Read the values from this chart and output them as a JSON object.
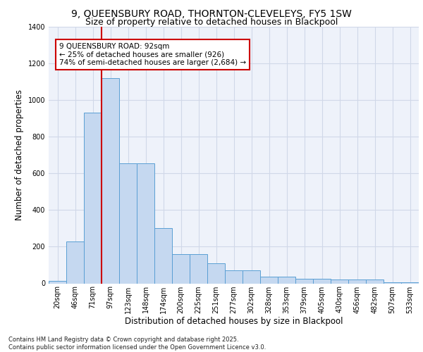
{
  "title_line1": "9, QUEENSBURY ROAD, THORNTON-CLEVELEYS, FY5 1SW",
  "title_line2": "Size of property relative to detached houses in Blackpool",
  "xlabel": "Distribution of detached houses by size in Blackpool",
  "ylabel": "Number of detached properties",
  "categories": [
    "20sqm",
    "46sqm",
    "71sqm",
    "97sqm",
    "123sqm",
    "148sqm",
    "174sqm",
    "200sqm",
    "225sqm",
    "251sqm",
    "277sqm",
    "302sqm",
    "328sqm",
    "353sqm",
    "379sqm",
    "405sqm",
    "430sqm",
    "456sqm",
    "482sqm",
    "507sqm",
    "533sqm"
  ],
  "values": [
    15,
    230,
    930,
    1120,
    655,
    655,
    300,
    160,
    160,
    110,
    70,
    70,
    38,
    38,
    25,
    25,
    20,
    20,
    20,
    5,
    5
  ],
  "bar_color": "#c5d8f0",
  "bar_edge_color": "#5a9fd4",
  "vline_color": "#cc0000",
  "annotation_text": "9 QUEENSBURY ROAD: 92sqm\n← 25% of detached houses are smaller (926)\n74% of semi-detached houses are larger (2,684) →",
  "annotation_box_color": "#ffffff",
  "annotation_box_edge": "#cc0000",
  "ylim": [
    0,
    1400
  ],
  "yticks": [
    0,
    200,
    400,
    600,
    800,
    1000,
    1200,
    1400
  ],
  "grid_color": "#d0d8e8",
  "bg_color": "#eef2fa",
  "footnote": "Contains HM Land Registry data © Crown copyright and database right 2025.\nContains public sector information licensed under the Open Government Licence v3.0.",
  "title_fontsize": 10,
  "subtitle_fontsize": 9,
  "tick_fontsize": 7,
  "label_fontsize": 8.5,
  "annot_fontsize": 7.5,
  "footnote_fontsize": 6
}
